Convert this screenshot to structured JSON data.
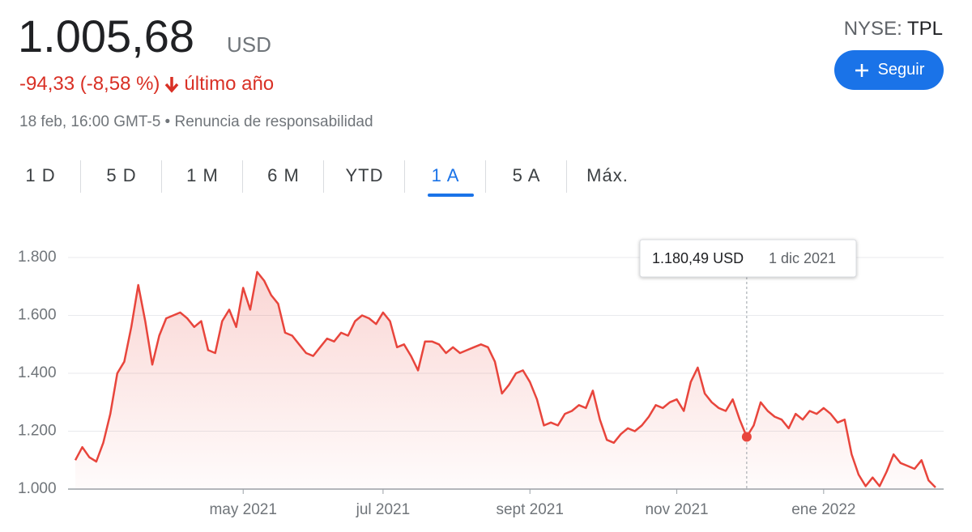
{
  "header": {
    "price": "1.005,68",
    "currency": "USD",
    "change": "-94,33 (-8,58 %)",
    "period": "último año",
    "disclaimer": "18 feb, 16:00 GMT-5 • Renuncia de responsabilidad",
    "exchange": "NYSE:",
    "ticker": "TPL",
    "follow": "Seguir"
  },
  "tabs": [
    "1 D",
    "5 D",
    "1 M",
    "6 M",
    "YTD",
    "1 A",
    "5 A",
    "Máx."
  ],
  "active_tab": "1 A",
  "chart_data": {
    "type": "line",
    "color": "#e8453c",
    "grid": true,
    "ylim": [
      1000,
      1800
    ],
    "yticks": [
      {
        "value": 1000,
        "label": "1.000"
      },
      {
        "value": 1200,
        "label": "1.200"
      },
      {
        "value": 1400,
        "label": "1.400"
      },
      {
        "value": 1600,
        "label": "1.600"
      },
      {
        "value": 1800,
        "label": "1.800"
      }
    ],
    "categories": [
      null,
      null,
      null,
      null,
      null,
      null,
      null,
      null,
      null,
      null,
      null,
      null,
      null,
      null,
      null,
      null,
      null,
      null,
      null,
      null,
      null,
      null,
      null,
      null,
      "may 2021",
      null,
      null,
      null,
      null,
      null,
      null,
      null,
      null,
      null,
      null,
      null,
      null,
      null,
      null,
      null,
      null,
      null,
      null,
      null,
      "jul 2021",
      null,
      null,
      null,
      null,
      null,
      null,
      null,
      null,
      null,
      null,
      null,
      null,
      null,
      null,
      null,
      null,
      null,
      null,
      null,
      null,
      "sept 2021",
      null,
      null,
      null,
      null,
      null,
      null,
      null,
      null,
      null,
      null,
      null,
      null,
      null,
      null,
      null,
      null,
      null,
      null,
      null,
      null,
      "nov 2021",
      null,
      null,
      null,
      null,
      null,
      null,
      null,
      null,
      null,
      null,
      null,
      null,
      null,
      null,
      null,
      null,
      null,
      null,
      null,
      null,
      "ene 2022",
      null,
      null,
      null,
      null,
      null,
      null,
      null,
      null,
      null,
      null,
      null,
      null,
      null,
      null,
      null,
      null
    ],
    "values": [
      1100,
      1145,
      1110,
      1095,
      1160,
      1260,
      1400,
      1440,
      1560,
      1705,
      1580,
      1430,
      1530,
      1590,
      1600,
      1610,
      1590,
      1560,
      1580,
      1480,
      1470,
      1580,
      1620,
      1560,
      1695,
      1620,
      1750,
      1720,
      1670,
      1640,
      1540,
      1530,
      1500,
      1470,
      1460,
      1490,
      1520,
      1510,
      1540,
      1530,
      1580,
      1600,
      1590,
      1570,
      1610,
      1580,
      1490,
      1500,
      1460,
      1410,
      1510,
      1510,
      1500,
      1470,
      1490,
      1470,
      1480,
      1490,
      1500,
      1490,
      1440,
      1330,
      1360,
      1400,
      1410,
      1370,
      1310,
      1220,
      1230,
      1220,
      1260,
      1270,
      1290,
      1280,
      1340,
      1240,
      1170,
      1160,
      1190,
      1210,
      1200,
      1220,
      1250,
      1290,
      1280,
      1300,
      1310,
      1270,
      1370,
      1420,
      1330,
      1300,
      1280,
      1270,
      1310,
      1240,
      1180.49,
      1220,
      1300,
      1270,
      1250,
      1240,
      1210,
      1260,
      1240,
      1270,
      1260,
      1280,
      1260,
      1230,
      1240,
      1120,
      1050,
      1010,
      1040,
      1010,
      1060,
      1120,
      1090,
      1080,
      1070,
      1100,
      1030,
      1005.68
    ],
    "tooltip": {
      "value": 1180.49,
      "label": "1.180,49 USD",
      "date": "1 dic 2021"
    }
  }
}
